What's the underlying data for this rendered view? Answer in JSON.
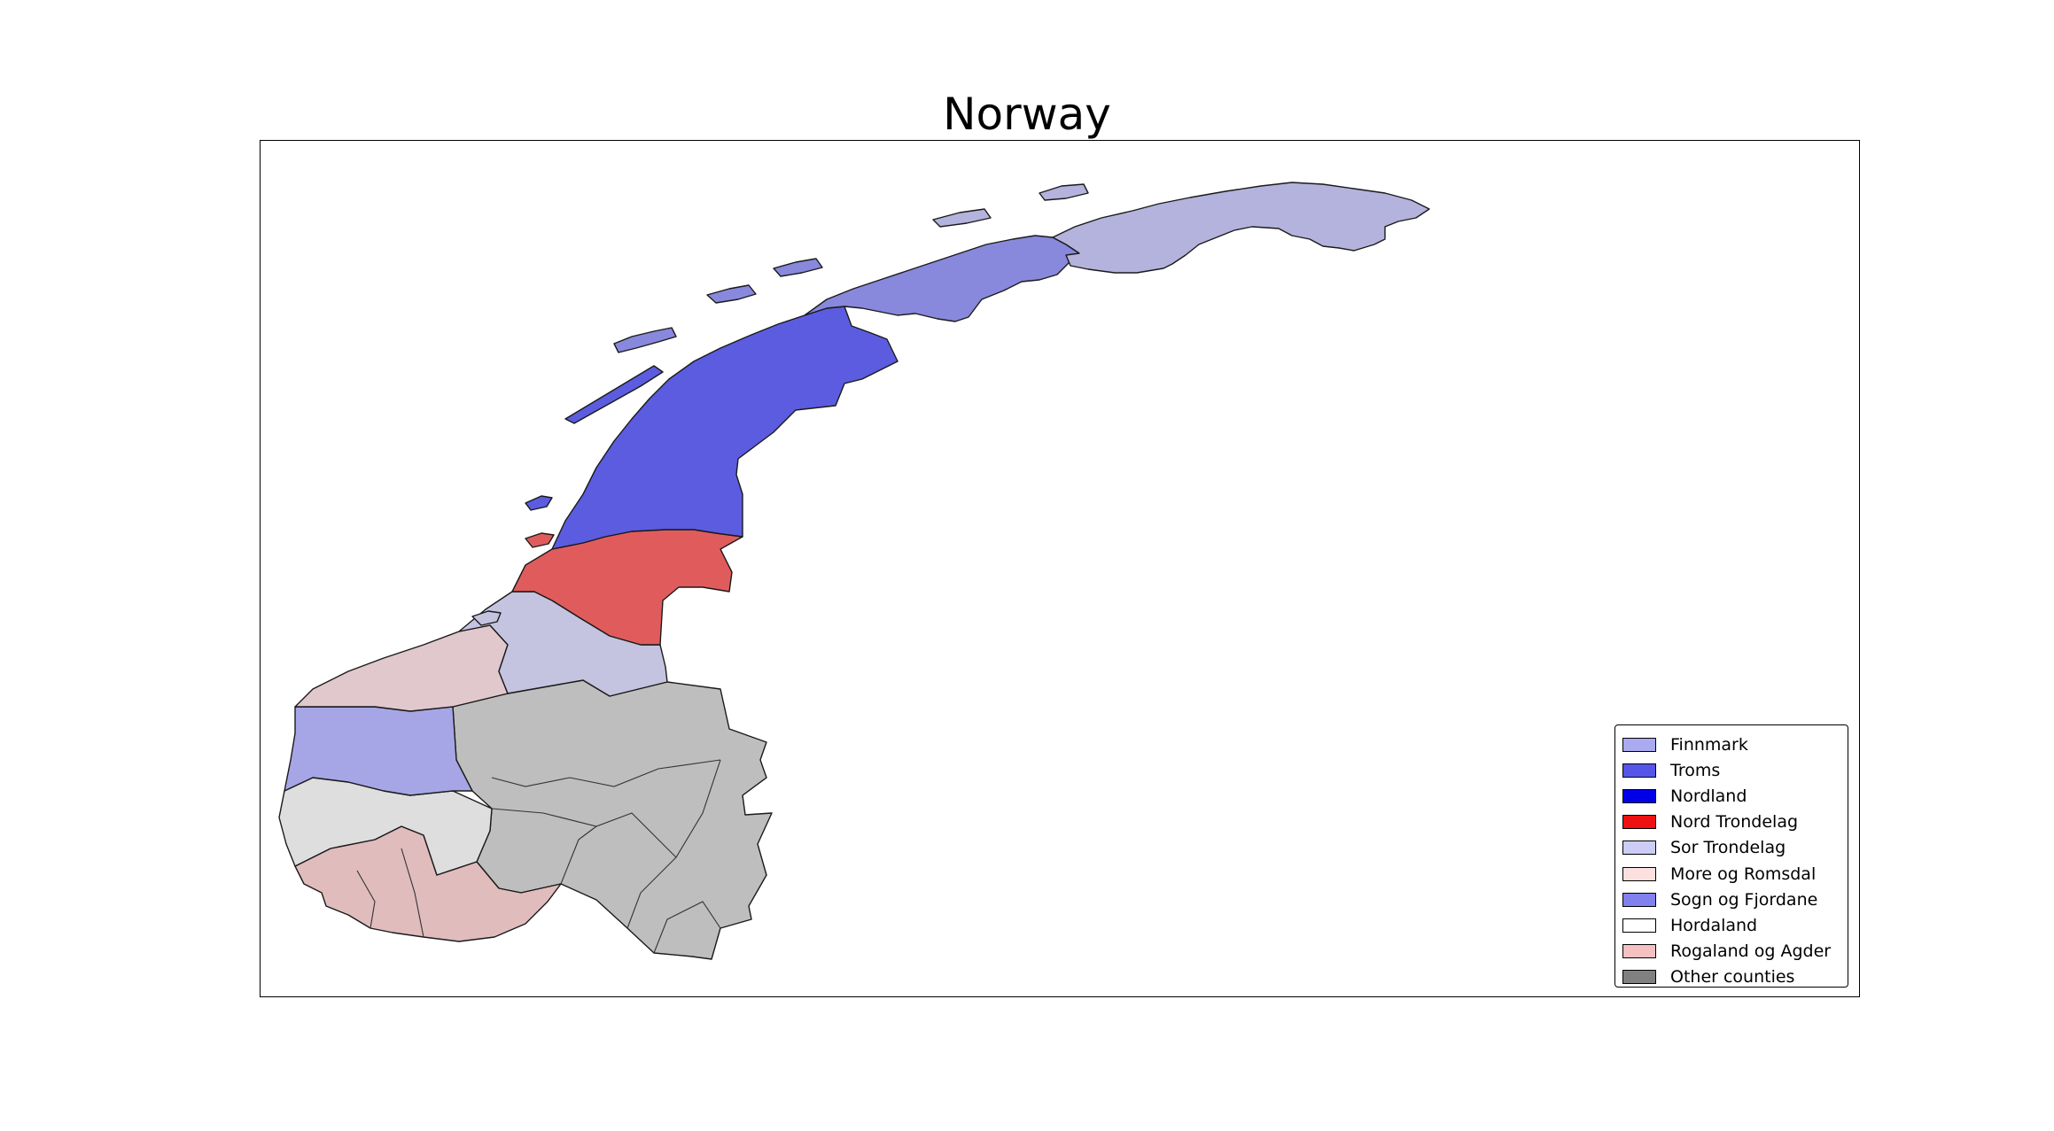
{
  "map": {
    "title": "Norway"
  },
  "regions": [
    {
      "name": "Finnmark",
      "legend_color": "#aaaaf0",
      "map_color": "#b3b3dd"
    },
    {
      "name": "Troms",
      "legend_color": "#5555e8",
      "map_color": "#8888dd"
    },
    {
      "name": "Nordland",
      "legend_color": "#0000e8",
      "map_color": "#5c5ce0"
    },
    {
      "name": "Nord Trondelag",
      "legend_color": "#ee1111",
      "map_color": "#e05c5c"
    },
    {
      "name": "Sor Trondelag",
      "legend_color": "#ccccf5",
      "map_color": "#c4c4e0"
    },
    {
      "name": "More og Romsdal",
      "legend_color": "#fce0e0",
      "map_color": "#e0c8cc"
    },
    {
      "name": "Sogn og Fjordane",
      "legend_color": "#8080ee",
      "map_color": "#a6a6e6"
    },
    {
      "name": "Hordaland",
      "legend_color": "#ffffff",
      "map_color": "#dedede"
    },
    {
      "name": "Rogaland og Agder",
      "legend_color": "#f5c0c0",
      "map_color": "#e0bcbc"
    },
    {
      "name": "Other counties",
      "legend_color": "#808080",
      "map_color": "#bebebe"
    }
  ]
}
